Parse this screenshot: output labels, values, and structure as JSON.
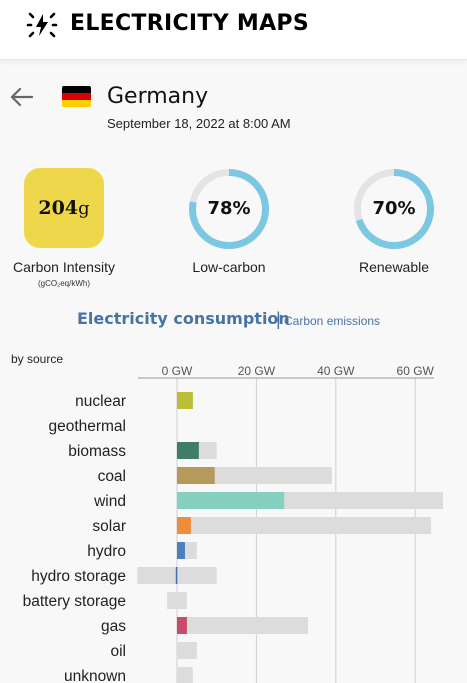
{
  "header": {
    "title": "ELECTRICITY MAPS",
    "logo_icon": "lightning-bolt-icon"
  },
  "zone": {
    "country": "Germany",
    "flag_colors": [
      "#000000",
      "#dd0000",
      "#ffce00"
    ],
    "datetime": "September 18, 2022 at 8:00 AM"
  },
  "metrics": {
    "carbon_intensity": {
      "value": "204",
      "unit": "g",
      "label": "Carbon Intensity",
      "sublabel": "(gCO₂eq/kWh)",
      "color": "#efd74b"
    },
    "low_carbon": {
      "value": "78%",
      "fraction": 0.78,
      "label": "Low-carbon",
      "color": "#7cc8e3"
    },
    "renewable": {
      "value": "70%",
      "fraction": 0.7,
      "label": "Renewable",
      "color": "#7cc8e3"
    }
  },
  "section": {
    "title": "Electricity consumption",
    "separator": "|",
    "link": "Carbon emissions"
  },
  "chart_data": {
    "type": "bar",
    "orientation": "horizontal",
    "group_label": "by source",
    "xunit": "GW",
    "ticks": [
      0,
      20,
      40,
      60
    ],
    "tick_labels": [
      "0 GW",
      "20 GW",
      "40 GW",
      "60 GW"
    ],
    "xlim": [
      -10,
      67
    ],
    "categories": [
      "nuclear",
      "geothermal",
      "biomass",
      "coal",
      "wind",
      "solar",
      "hydro",
      "hydro storage",
      "battery storage",
      "gas",
      "oil",
      "unknown"
    ],
    "production_gw": [
      4,
      0,
      5.5,
      9.5,
      27,
      3.5,
      2,
      -0.3,
      0,
      2.5,
      0,
      0
    ],
    "capacity_range_gw": [
      [
        0,
        4
      ],
      [
        0,
        0
      ],
      [
        0,
        10
      ],
      [
        0,
        39
      ],
      [
        0,
        67
      ],
      [
        0,
        64
      ],
      [
        0,
        5
      ],
      [
        -10,
        10
      ],
      [
        -2.5,
        2.5
      ],
      [
        0,
        33
      ],
      [
        0,
        5
      ],
      [
        0,
        4
      ]
    ],
    "colors": [
      "#bcbf36",
      "#c0c0c0",
      "#3f7d6a",
      "#b59a5b",
      "#86d0c0",
      "#ee8d3b",
      "#4c80bd",
      "#3f6fb3",
      "#b070b0",
      "#c74b6b",
      "#8a8a8a",
      "#9a9a9a"
    ],
    "capacity_color": "#dcdcdc",
    "grid": true
  }
}
